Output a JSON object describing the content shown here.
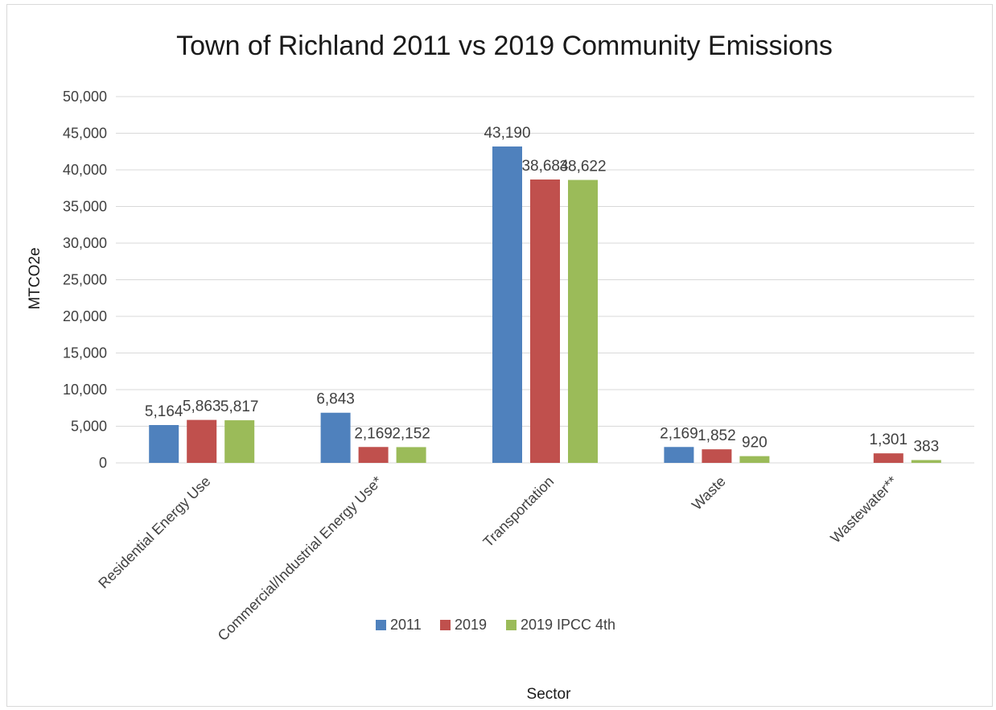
{
  "chart_data": {
    "type": "bar",
    "title": "Town of Richland 2011 vs 2019 Community  Emissions",
    "xlabel": "Sector",
    "ylabel": "MTCO2e",
    "ylim": [
      0,
      50000
    ],
    "yticks": [
      0,
      5000,
      10000,
      15000,
      20000,
      25000,
      30000,
      35000,
      40000,
      45000,
      50000
    ],
    "ytick_labels": [
      "0",
      "5,000",
      "10,000",
      "15,000",
      "20,000",
      "25,000",
      "30,000",
      "35,000",
      "40,000",
      "45,000",
      "50,000"
    ],
    "grid": true,
    "legend_position": "bottom",
    "categories": [
      "Residential Energy Use",
      "Commercial/Industrial Energy Use*",
      "Transportation",
      "Waste",
      "Wastewater**"
    ],
    "series": [
      {
        "name": "2011",
        "color": "#4f81bd",
        "values": [
          5164,
          6843,
          43190,
          2169,
          null
        ],
        "labels": [
          "5,164",
          "6,843",
          "43,190",
          "2,169",
          ""
        ]
      },
      {
        "name": "2019",
        "color": "#c0504d",
        "values": [
          5863,
          2169,
          38684,
          1852,
          1301
        ],
        "labels": [
          "5,863",
          "2,169",
          "38,684",
          "1,852",
          "1,301"
        ]
      },
      {
        "name": "2019 IPCC 4th",
        "color": "#9bbb59",
        "values": [
          5817,
          2152,
          38622,
          920,
          383
        ],
        "labels": [
          "5,817",
          "2,152",
          "38,622",
          "920",
          "383"
        ]
      }
    ]
  }
}
